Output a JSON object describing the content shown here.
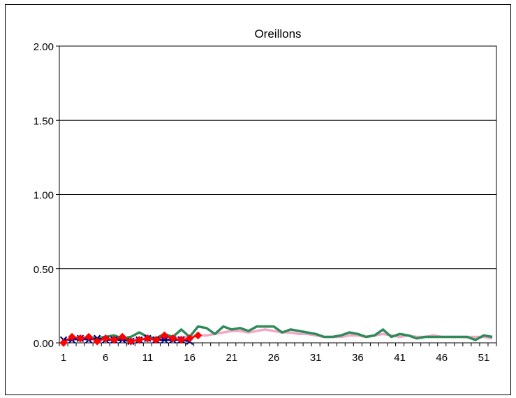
{
  "chart_data": {
    "type": "line",
    "title": "Oreillons",
    "xlabel": "",
    "ylabel": "",
    "xlim": [
      1,
      52
    ],
    "ylim": [
      0,
      2
    ],
    "grid": true,
    "yticks": [
      "0.00",
      "0.50",
      "1.00",
      "1.50",
      "2.00"
    ],
    "xticks": [
      "1",
      "6",
      "11",
      "16",
      "21",
      "26",
      "31",
      "36",
      "41",
      "46",
      "51"
    ],
    "series": [
      {
        "color": "#f4a6c8",
        "marker": "none",
        "x": [
          1,
          2,
          3,
          4,
          5,
          6,
          7,
          8,
          9,
          10,
          11,
          12,
          13,
          14,
          15,
          16,
          17,
          18,
          19,
          20,
          21,
          22,
          23,
          24,
          25,
          26,
          27,
          28,
          29,
          30,
          31,
          32,
          33,
          34,
          35,
          36,
          37,
          38,
          39,
          40,
          41,
          42,
          43,
          44,
          45,
          46,
          47,
          48,
          49,
          50,
          51,
          52
        ],
        "values": [
          0.02,
          0.03,
          0.02,
          0.03,
          0.02,
          0.03,
          0.02,
          0.03,
          0.02,
          0.03,
          0.02,
          0.03,
          0.03,
          0.03,
          0.04,
          0.04,
          0.05,
          0.05,
          0.06,
          0.07,
          0.08,
          0.08,
          0.07,
          0.08,
          0.09,
          0.08,
          0.07,
          0.07,
          0.06,
          0.06,
          0.05,
          0.04,
          0.04,
          0.04,
          0.05,
          0.05,
          0.04,
          0.05,
          0.06,
          0.05,
          0.04,
          0.05,
          0.04,
          0.04,
          0.05,
          0.04,
          0.04,
          0.04,
          0.04,
          0.04,
          0.04,
          0.03
        ]
      },
      {
        "color": "#2e8b57",
        "marker": "none",
        "x": [
          1,
          2,
          3,
          4,
          5,
          6,
          7,
          8,
          9,
          10,
          11,
          12,
          13,
          14,
          15,
          16,
          17,
          18,
          19,
          20,
          21,
          22,
          23,
          24,
          25,
          26,
          27,
          28,
          29,
          30,
          31,
          32,
          33,
          34,
          35,
          36,
          37,
          38,
          39,
          40,
          41,
          42,
          43,
          44,
          45,
          46,
          47,
          48,
          49,
          50,
          51,
          52
        ],
        "values": [
          0.01,
          0.03,
          0.02,
          0.04,
          0.03,
          0.04,
          0.05,
          0.03,
          0.04,
          0.07,
          0.04,
          0.03,
          0.06,
          0.04,
          0.09,
          0.04,
          0.11,
          0.1,
          0.06,
          0.11,
          0.09,
          0.1,
          0.08,
          0.11,
          0.11,
          0.11,
          0.07,
          0.09,
          0.08,
          0.07,
          0.06,
          0.04,
          0.04,
          0.05,
          0.07,
          0.06,
          0.04,
          0.05,
          0.09,
          0.04,
          0.06,
          0.05,
          0.03,
          0.04,
          0.04,
          0.04,
          0.04,
          0.04,
          0.04,
          0.02,
          0.05,
          0.04
        ]
      },
      {
        "color": "#000080",
        "marker": "x",
        "x": [
          1,
          2,
          3,
          4,
          5,
          6,
          7,
          8,
          9,
          10,
          11,
          12,
          13,
          14,
          15,
          16
        ],
        "values": [
          0.02,
          0.02,
          0.03,
          0.02,
          0.03,
          0.02,
          0.02,
          0.02,
          0.01,
          0.02,
          0.03,
          0.02,
          0.02,
          0.02,
          0.02,
          0.01
        ]
      },
      {
        "color": "#ff0000",
        "marker": "diamond",
        "x": [
          1,
          2,
          3,
          4,
          5,
          6,
          7,
          8,
          9,
          10,
          11,
          12,
          13,
          14,
          15,
          16,
          17
        ],
        "values": [
          0.0,
          0.04,
          0.03,
          0.04,
          0.01,
          0.03,
          0.02,
          0.04,
          0.01,
          0.02,
          0.03,
          0.02,
          0.05,
          0.03,
          0.02,
          0.03,
          0.05
        ]
      }
    ]
  }
}
